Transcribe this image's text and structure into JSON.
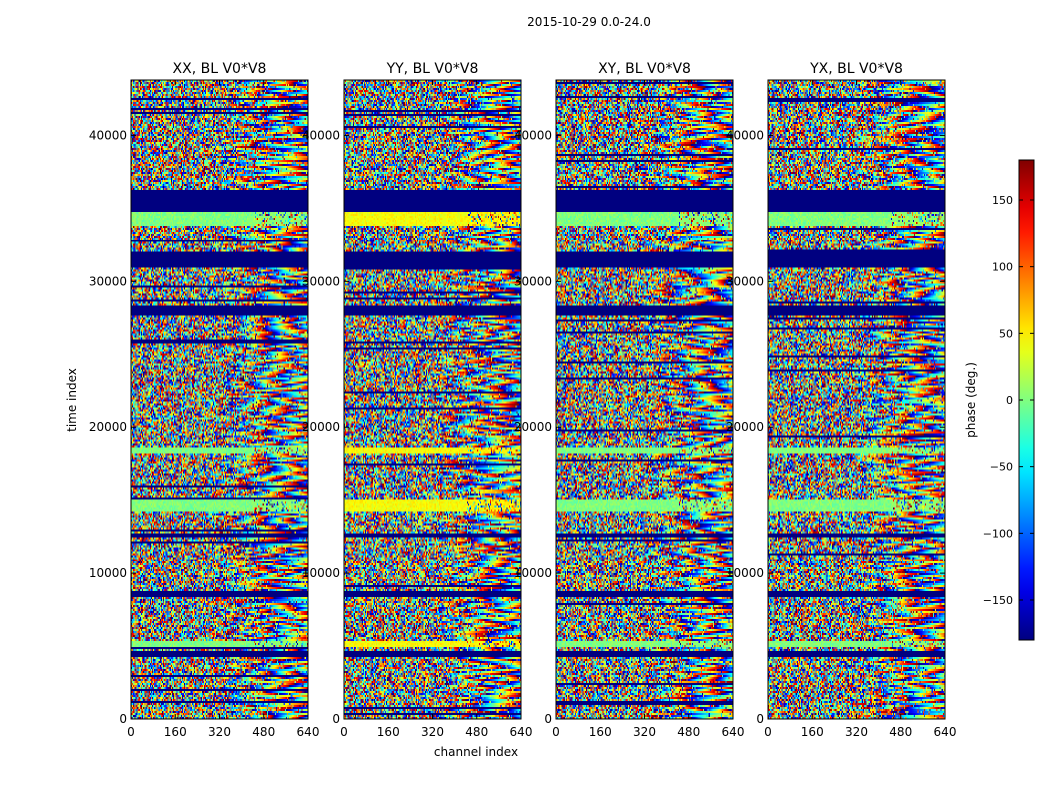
{
  "chart_data": {
    "type": "heatmap",
    "title": "2015-10-29 0.0-24.0",
    "xlabel": "channel index",
    "ylabel": "time index",
    "xlim": [
      0,
      640
    ],
    "ylim": [
      0,
      43800
    ],
    "x_ticks": [
      0,
      160,
      320,
      480,
      640
    ],
    "y_ticks": [
      0,
      10000,
      20000,
      30000,
      40000
    ],
    "colorbar": {
      "label": "phase (deg.)",
      "range": [
        -180,
        180
      ],
      "ticks": [
        -150,
        -100,
        -50,
        0,
        50,
        100,
        150
      ],
      "tick_labels": [
        "−150",
        "−100",
        "−50",
        "0",
        "50",
        "100",
        "150"
      ],
      "colormap": "jet"
    },
    "panels": [
      {
        "title": "XX, BL V0*V8",
        "polarization": "XX",
        "seed": 11
      },
      {
        "title": "YY, BL V0*V8",
        "polarization": "YY",
        "seed": 23
      },
      {
        "title": "XY, BL V0*V8",
        "polarization": "XY",
        "seed": 37
      },
      {
        "title": "YX, BL V0*V8",
        "polarization": "YX",
        "seed": 53
      }
    ],
    "flagged_time_bands": [
      [
        34800,
        36300
      ],
      [
        31000,
        32000
      ],
      [
        27600,
        28400
      ],
      [
        4300,
        4600
      ],
      [
        8400,
        8700
      ],
      [
        12400,
        12700
      ]
    ],
    "zero_phase_time_bands": [
      [
        33800,
        34800
      ],
      [
        18200,
        18600
      ],
      [
        14200,
        15000
      ],
      [
        4900,
        5400
      ]
    ]
  }
}
